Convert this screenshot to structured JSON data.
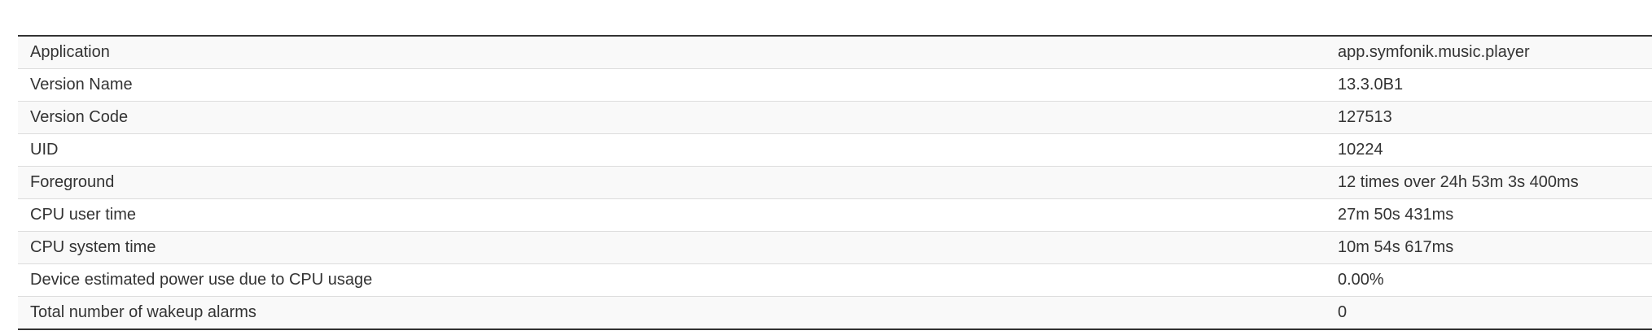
{
  "rows": [
    {
      "label": "Application",
      "value": "app.symfonik.music.player"
    },
    {
      "label": "Version Name",
      "value": "13.3.0B1"
    },
    {
      "label": "Version Code",
      "value": "127513"
    },
    {
      "label": "UID",
      "value": "10224"
    },
    {
      "label": "Foreground",
      "value": "12 times over 24h 53m 3s 400ms"
    },
    {
      "label": "CPU user time",
      "value": "27m 50s 431ms"
    },
    {
      "label": "CPU system time",
      "value": "10m 54s 617ms"
    },
    {
      "label": "Device estimated power use due to CPU usage",
      "value": "0.00%"
    },
    {
      "label": "Total number of wakeup alarms",
      "value": "0"
    }
  ]
}
